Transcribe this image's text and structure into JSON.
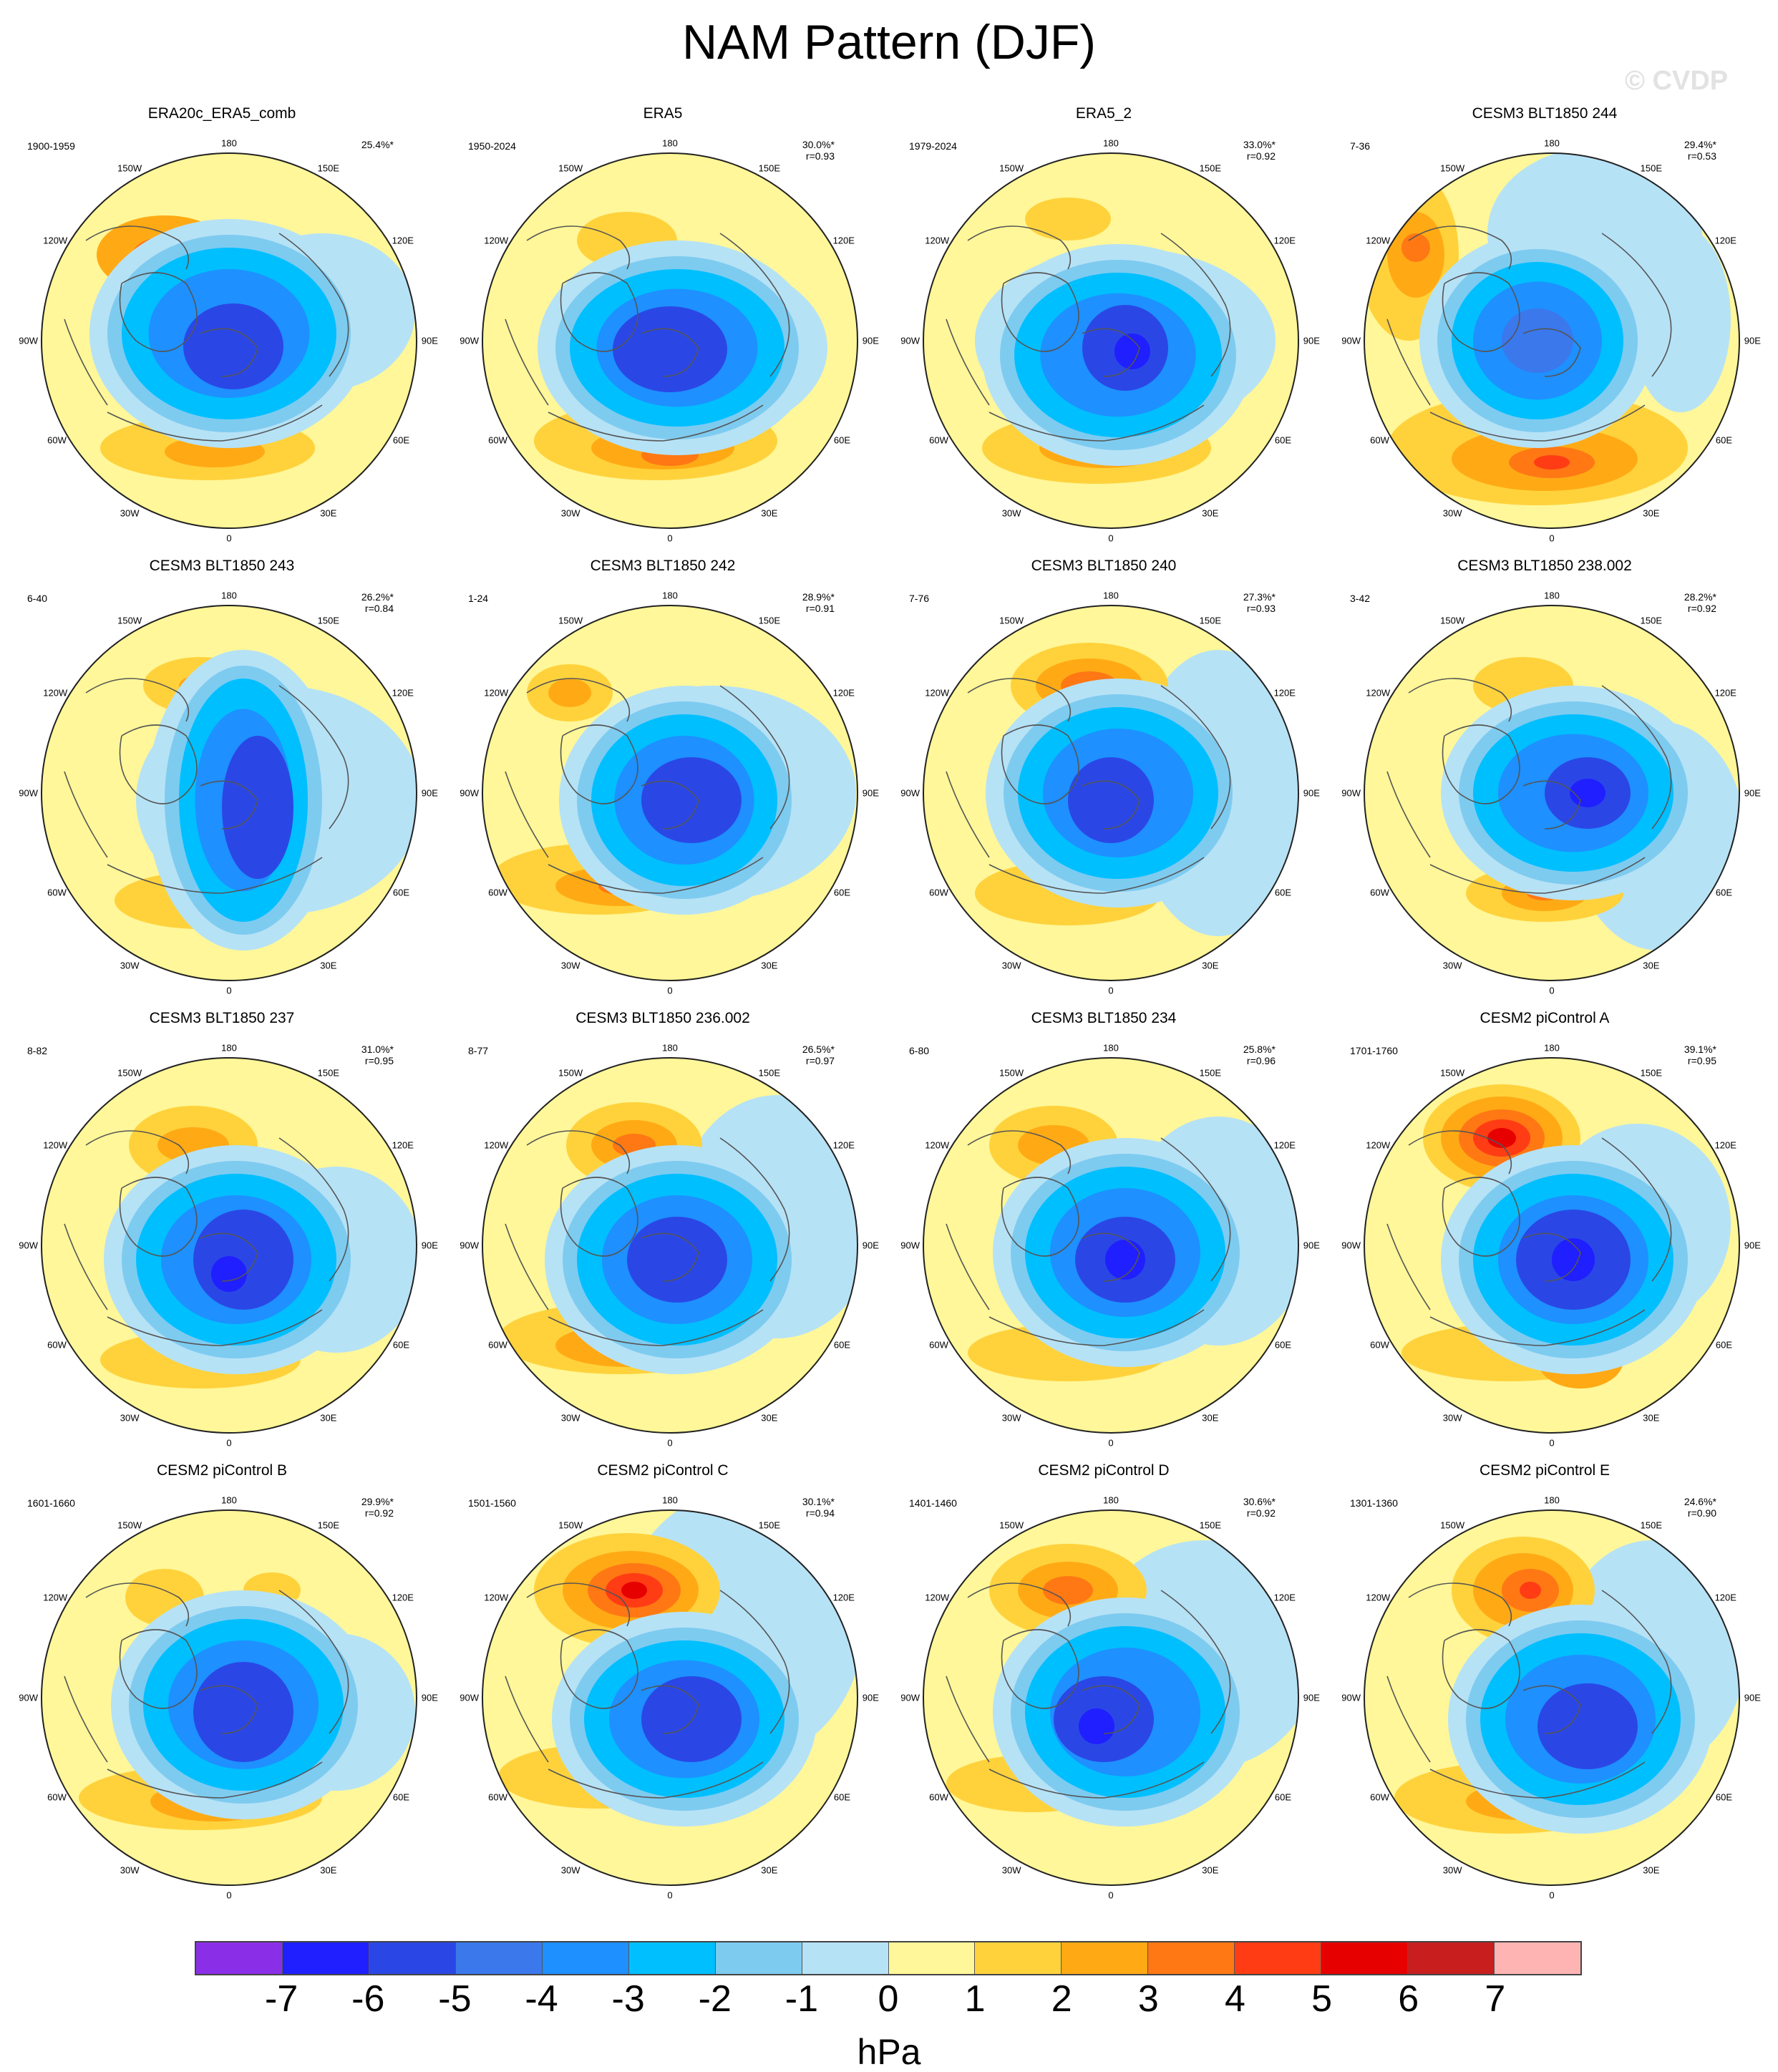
{
  "title": "NAM Pattern (DJF)",
  "watermark": "© CVDP",
  "longitude_labels": {
    "lon_180": "180",
    "lon_150E": "150E",
    "lon_120E": "120E",
    "lon_90E": "90E",
    "lon_60E": "60E",
    "lon_30E": "30E",
    "lon_0": "0",
    "lon_30W": "30W",
    "lon_60W": "60W",
    "lon_90W": "90W",
    "lon_120W": "120W",
    "lon_150W": "150W"
  },
  "panels": [
    {
      "title": "ERA20c_ERA5_comb",
      "period": "1900-1959",
      "pct": "25.4%*",
      "r": ""
    },
    {
      "title": "ERA5",
      "period": "1950-2024",
      "pct": "30.0%*",
      "r": "r=0.93"
    },
    {
      "title": "ERA5_2",
      "period": "1979-2024",
      "pct": "33.0%*",
      "r": "r=0.92"
    },
    {
      "title": "CESM3 BLT1850 244",
      "period": "7-36",
      "pct": "29.4%*",
      "r": "r=0.53"
    },
    {
      "title": "CESM3 BLT1850 243",
      "period": "6-40",
      "pct": "26.2%*",
      "r": "r=0.84"
    },
    {
      "title": "CESM3 BLT1850 242",
      "period": "1-24",
      "pct": "28.9%*",
      "r": "r=0.91"
    },
    {
      "title": "CESM3 BLT1850 240",
      "period": "7-76",
      "pct": "27.3%*",
      "r": "r=0.93"
    },
    {
      "title": "CESM3 BLT1850 238.002",
      "period": "3-42",
      "pct": "28.2%*",
      "r": "r=0.92"
    },
    {
      "title": "CESM3 BLT1850 237",
      "period": "8-82",
      "pct": "31.0%*",
      "r": "r=0.95"
    },
    {
      "title": "CESM3 BLT1850 236.002",
      "period": "8-77",
      "pct": "26.5%*",
      "r": "r=0.97"
    },
    {
      "title": "CESM3 BLT1850 234",
      "period": "6-80",
      "pct": "25.8%*",
      "r": "r=0.96"
    },
    {
      "title": "CESM2 piControl A",
      "period": "1701-1760",
      "pct": "39.1%*",
      "r": "r=0.95"
    },
    {
      "title": "CESM2 piControl B",
      "period": "1601-1660",
      "pct": "29.9%*",
      "r": "r=0.92"
    },
    {
      "title": "CESM2 piControl C",
      "period": "1501-1560",
      "pct": "30.1%*",
      "r": "r=0.94"
    },
    {
      "title": "CESM2 piControl D",
      "period": "1401-1460",
      "pct": "30.6%*",
      "r": "r=0.92"
    },
    {
      "title": "CESM2 piControl E",
      "period": "1301-1360",
      "pct": "24.6%*",
      "r": "r=0.90"
    }
  ],
  "colorbar": {
    "units": "hPa",
    "ticks": [
      "-7",
      "-6",
      "-5",
      "-4",
      "-3",
      "-2",
      "-1",
      "0",
      "1",
      "2",
      "3",
      "4",
      "5",
      "6",
      "7"
    ],
    "colors": [
      "#8b2ee8",
      "#1f1fff",
      "#2a47e6",
      "#3a78ec",
      "#1e90ff",
      "#00bfff",
      "#7ecbf0",
      "#b6e2f6",
      "#fff799",
      "#ffd23c",
      "#ffaa14",
      "#ff7814",
      "#ff3c14",
      "#e60000",
      "#c81e1e",
      "#ffb4b4"
    ]
  }
}
